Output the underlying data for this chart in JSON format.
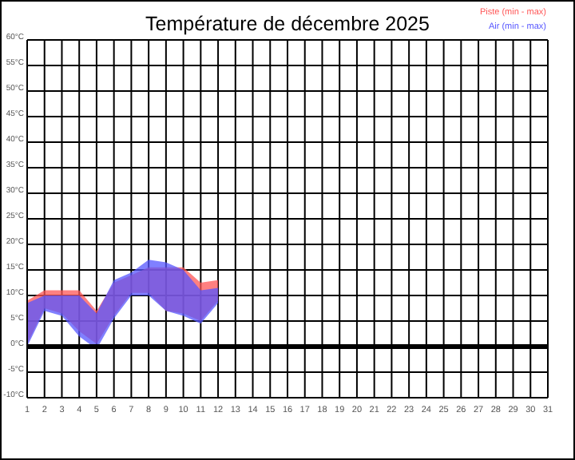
{
  "chart_data": {
    "type": "area",
    "title": "Température de décembre 2025",
    "x": [
      1,
      2,
      3,
      4,
      5,
      6,
      7,
      8,
      9,
      10,
      11,
      12
    ],
    "series": [
      {
        "name": "Piste (min - max)",
        "color": "#ff5555",
        "values": [
          null,
          null,
          null,
          null,
          null,
          null,
          null,
          null,
          null,
          null,
          null,
          null
        ],
        "upper": [
          9,
          11,
          11,
          11,
          7,
          12.5,
          14,
          15.5,
          15.5,
          15.5,
          12.5,
          13
        ],
        "lower": [
          0.5,
          7.5,
          6.5,
          3,
          0.5,
          6,
          10.5,
          10.5,
          7,
          6.5,
          5,
          9
        ]
      },
      {
        "name": "Air (min - max)",
        "color": "#5555ff",
        "values": [
          null,
          null,
          null,
          null,
          null,
          null,
          null,
          null,
          null,
          null,
          null,
          null
        ],
        "upper": [
          8.5,
          10,
          10,
          10,
          6.5,
          13,
          14.5,
          17,
          16.5,
          15,
          11,
          11.5
        ],
        "lower": [
          0,
          7,
          6,
          2,
          -0.5,
          5.5,
          10,
          10,
          7,
          6,
          4.5,
          8.5
        ]
      }
    ],
    "xlim": [
      1,
      31
    ],
    "xticks": [
      1,
      2,
      3,
      4,
      5,
      6,
      7,
      8,
      9,
      10,
      11,
      12,
      13,
      14,
      15,
      16,
      17,
      18,
      19,
      20,
      21,
      22,
      23,
      24,
      25,
      26,
      27,
      28,
      29,
      30,
      31
    ],
    "ylim": [
      -10,
      60
    ],
    "yticks": [
      {
        "value": -10,
        "label": "-10°C"
      },
      {
        "value": -5,
        "label": "-5°C"
      },
      {
        "value": 0,
        "label": "0°C"
      },
      {
        "value": 5,
        "label": "5°C"
      },
      {
        "value": 10,
        "label": "10°C"
      },
      {
        "value": 15,
        "label": "15°C"
      },
      {
        "value": 20,
        "label": "20°C"
      },
      {
        "value": 25,
        "label": "25°C"
      },
      {
        "value": 30,
        "label": "30°C"
      },
      {
        "value": 35,
        "label": "35°C"
      },
      {
        "value": 40,
        "label": "40°C"
      },
      {
        "value": 45,
        "label": "45°C"
      },
      {
        "value": 50,
        "label": "50°C"
      },
      {
        "value": 55,
        "label": "55°C"
      },
      {
        "value": 60,
        "label": "60°C"
      }
    ],
    "grid": true,
    "ref_lines": [
      {
        "axis": "y",
        "value": 0,
        "color": "#000000"
      }
    ]
  }
}
